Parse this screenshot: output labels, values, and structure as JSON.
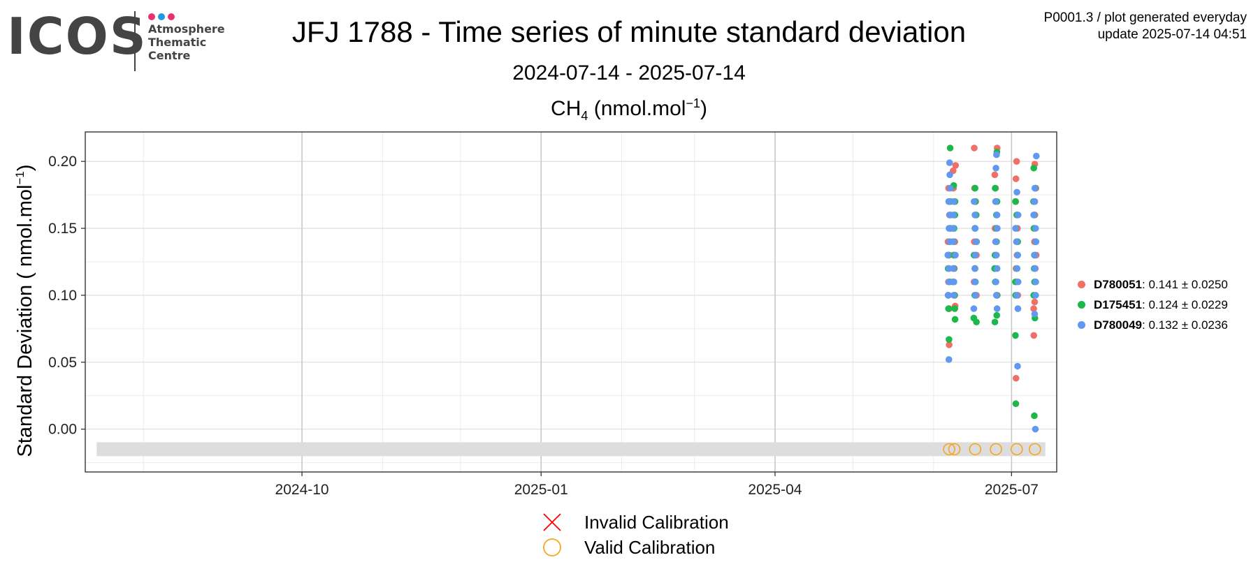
{
  "logo": {
    "word": "ICOS",
    "subtitle_lines": [
      "Atmosphere",
      "Thematic",
      "Centre"
    ],
    "dot_colors": [
      "#e6336e",
      "#1e9be0",
      "#e6336e"
    ]
  },
  "header": {
    "title": "JFJ 1788 - Time series of minute standard deviation",
    "date_range": "2024-07-14 - 2025-07-14",
    "gas_base": "CH",
    "gas_sub": "4",
    "gas_unit_pre": " (nmol.mol",
    "gas_unit_sup": "−1",
    "gas_unit_post": ")",
    "meta_line1": "P0001.3 / plot generated everyday",
    "meta_line2": "update  2025-07-14 04:51"
  },
  "chart_data": {
    "type": "scatter",
    "ylabel_pre": "Standard Deviation ( nmol.mol",
    "ylabel_sup": "−1",
    "ylabel_post": ")",
    "x_range": [
      "2024-07-14",
      "2025-07-14"
    ],
    "ylim": [
      -0.032,
      0.222
    ],
    "y_ticks": [
      0.0,
      0.05,
      0.1,
      0.15,
      0.2
    ],
    "y_tick_labels": [
      "0.00",
      "0.05",
      "0.10",
      "0.15",
      "0.20"
    ],
    "x_ticks": [
      "2024-10-01",
      "2025-01-01",
      "2025-04-01",
      "2025-07-01"
    ],
    "x_tick_labels": [
      "2024-10",
      "2025-01",
      "2025-04",
      "2025-07"
    ],
    "x_minor_ticks": [
      "2024-08-01",
      "2024-11-01",
      "2024-12-01",
      "2025-02-01",
      "2025-03-01",
      "2025-05-01",
      "2025-06-01"
    ],
    "grid": true,
    "legend_position": "right",
    "calibration_band": {
      "y_center": -0.015,
      "from": "2024-07-14",
      "to": "2025-07-14",
      "color": "#dddddd"
    },
    "calibration_points": {
      "status": "valid",
      "dates": [
        "2025-06-07",
        "2025-06-09",
        "2025-06-17",
        "2025-06-25",
        "2025-07-03",
        "2025-07-10"
      ],
      "y": -0.015
    },
    "series": [
      {
        "name": "D780051",
        "stats": ": 0.141 ± 0.0250",
        "color": "#f07068",
        "points": [
          [
            "2025-06-07",
            0.063
          ],
          [
            "2025-06-07",
            0.09
          ],
          [
            "2025-06-07",
            0.1
          ],
          [
            "2025-06-07",
            0.11
          ],
          [
            "2025-06-07",
            0.12
          ],
          [
            "2025-06-07",
            0.13
          ],
          [
            "2025-06-07",
            0.14
          ],
          [
            "2025-06-07",
            0.15
          ],
          [
            "2025-06-07",
            0.16
          ],
          [
            "2025-06-07",
            0.17
          ],
          [
            "2025-06-07",
            0.18
          ],
          [
            "2025-06-09",
            0.092
          ],
          [
            "2025-06-09",
            0.1
          ],
          [
            "2025-06-09",
            0.11
          ],
          [
            "2025-06-09",
            0.12
          ],
          [
            "2025-06-09",
            0.13
          ],
          [
            "2025-06-09",
            0.14
          ],
          [
            "2025-06-09",
            0.15
          ],
          [
            "2025-06-09",
            0.16
          ],
          [
            "2025-06-09",
            0.17
          ],
          [
            "2025-06-09",
            0.18
          ],
          [
            "2025-06-09",
            0.193
          ],
          [
            "2025-06-09",
            0.197
          ],
          [
            "2025-06-17",
            0.1
          ],
          [
            "2025-06-17",
            0.11
          ],
          [
            "2025-06-17",
            0.12
          ],
          [
            "2025-06-17",
            0.13
          ],
          [
            "2025-06-17",
            0.14
          ],
          [
            "2025-06-17",
            0.15
          ],
          [
            "2025-06-17",
            0.16
          ],
          [
            "2025-06-17",
            0.17
          ],
          [
            "2025-06-17",
            0.18
          ],
          [
            "2025-06-17",
            0.21
          ],
          [
            "2025-06-25",
            0.1
          ],
          [
            "2025-06-25",
            0.11
          ],
          [
            "2025-06-25",
            0.12
          ],
          [
            "2025-06-25",
            0.13
          ],
          [
            "2025-06-25",
            0.14
          ],
          [
            "2025-06-25",
            0.15
          ],
          [
            "2025-06-25",
            0.16
          ],
          [
            "2025-06-25",
            0.17
          ],
          [
            "2025-06-25",
            0.18
          ],
          [
            "2025-06-25",
            0.19
          ],
          [
            "2025-06-25",
            0.21
          ],
          [
            "2025-07-03",
            0.038
          ],
          [
            "2025-07-03",
            0.1
          ],
          [
            "2025-07-03",
            0.11
          ],
          [
            "2025-07-03",
            0.12
          ],
          [
            "2025-07-03",
            0.13
          ],
          [
            "2025-07-03",
            0.14
          ],
          [
            "2025-07-03",
            0.15
          ],
          [
            "2025-07-03",
            0.16
          ],
          [
            "2025-07-03",
            0.17
          ],
          [
            "2025-07-03",
            0.187
          ],
          [
            "2025-07-03",
            0.2
          ],
          [
            "2025-07-10",
            0.07
          ],
          [
            "2025-07-10",
            0.09
          ],
          [
            "2025-07-10",
            0.095
          ],
          [
            "2025-07-10",
            0.11
          ],
          [
            "2025-07-10",
            0.12
          ],
          [
            "2025-07-10",
            0.13
          ],
          [
            "2025-07-10",
            0.14
          ],
          [
            "2025-07-10",
            0.15
          ],
          [
            "2025-07-10",
            0.16
          ],
          [
            "2025-07-10",
            0.17
          ],
          [
            "2025-07-10",
            0.18
          ],
          [
            "2025-07-10",
            0.198
          ]
        ]
      },
      {
        "name": "D175451",
        "stats": ": 0.124 ± 0.0229",
        "color": "#1cb84a",
        "points": [
          [
            "2025-06-07",
            0.067
          ],
          [
            "2025-06-07",
            0.09
          ],
          [
            "2025-06-07",
            0.1
          ],
          [
            "2025-06-07",
            0.11
          ],
          [
            "2025-06-07",
            0.12
          ],
          [
            "2025-06-07",
            0.13
          ],
          [
            "2025-06-07",
            0.14
          ],
          [
            "2025-06-07",
            0.15
          ],
          [
            "2025-06-07",
            0.16
          ],
          [
            "2025-06-07",
            0.17
          ],
          [
            "2025-06-07",
            0.21
          ],
          [
            "2025-06-09",
            0.082
          ],
          [
            "2025-06-09",
            0.09
          ],
          [
            "2025-06-09",
            0.1
          ],
          [
            "2025-06-09",
            0.11
          ],
          [
            "2025-06-09",
            0.12
          ],
          [
            "2025-06-09",
            0.13
          ],
          [
            "2025-06-09",
            0.14
          ],
          [
            "2025-06-09",
            0.15
          ],
          [
            "2025-06-09",
            0.16
          ],
          [
            "2025-06-09",
            0.17
          ],
          [
            "2025-06-09",
            0.182
          ],
          [
            "2025-06-17",
            0.08
          ],
          [
            "2025-06-17",
            0.083
          ],
          [
            "2025-06-17",
            0.1
          ],
          [
            "2025-06-17",
            0.11
          ],
          [
            "2025-06-17",
            0.12
          ],
          [
            "2025-06-17",
            0.13
          ],
          [
            "2025-06-17",
            0.14
          ],
          [
            "2025-06-17",
            0.15
          ],
          [
            "2025-06-17",
            0.16
          ],
          [
            "2025-06-17",
            0.17
          ],
          [
            "2025-06-17",
            0.18
          ],
          [
            "2025-06-25",
            0.08
          ],
          [
            "2025-06-25",
            0.085
          ],
          [
            "2025-06-25",
            0.1
          ],
          [
            "2025-06-25",
            0.11
          ],
          [
            "2025-06-25",
            0.12
          ],
          [
            "2025-06-25",
            0.13
          ],
          [
            "2025-06-25",
            0.14
          ],
          [
            "2025-06-25",
            0.15
          ],
          [
            "2025-06-25",
            0.16
          ],
          [
            "2025-06-25",
            0.17
          ],
          [
            "2025-06-25",
            0.18
          ],
          [
            "2025-06-25",
            0.207
          ],
          [
            "2025-07-03",
            0.019
          ],
          [
            "2025-07-03",
            0.07
          ],
          [
            "2025-07-03",
            0.1
          ],
          [
            "2025-07-03",
            0.11
          ],
          [
            "2025-07-03",
            0.12
          ],
          [
            "2025-07-03",
            0.13
          ],
          [
            "2025-07-03",
            0.14
          ],
          [
            "2025-07-03",
            0.15
          ],
          [
            "2025-07-03",
            0.16
          ],
          [
            "2025-07-03",
            0.17
          ],
          [
            "2025-07-10",
            0.01
          ],
          [
            "2025-07-10",
            0.083
          ],
          [
            "2025-07-10",
            0.1
          ],
          [
            "2025-07-10",
            0.11
          ],
          [
            "2025-07-10",
            0.12
          ],
          [
            "2025-07-10",
            0.13
          ],
          [
            "2025-07-10",
            0.14
          ],
          [
            "2025-07-10",
            0.15
          ],
          [
            "2025-07-10",
            0.16
          ],
          [
            "2025-07-10",
            0.17
          ],
          [
            "2025-07-10",
            0.18
          ],
          [
            "2025-07-10",
            0.195
          ]
        ]
      },
      {
        "name": "D780049",
        "stats": ": 0.132 ± 0.0236",
        "color": "#6199f0",
        "points": [
          [
            "2025-06-07",
            0.052
          ],
          [
            "2025-06-07",
            0.1
          ],
          [
            "2025-06-07",
            0.11
          ],
          [
            "2025-06-07",
            0.12
          ],
          [
            "2025-06-07",
            0.13
          ],
          [
            "2025-06-07",
            0.14
          ],
          [
            "2025-06-07",
            0.15
          ],
          [
            "2025-06-07",
            0.16
          ],
          [
            "2025-06-07",
            0.17
          ],
          [
            "2025-06-07",
            0.18
          ],
          [
            "2025-06-07",
            0.19
          ],
          [
            "2025-06-07",
            0.199
          ],
          [
            "2025-06-09",
            0.1
          ],
          [
            "2025-06-09",
            0.11
          ],
          [
            "2025-06-09",
            0.12
          ],
          [
            "2025-06-09",
            0.13
          ],
          [
            "2025-06-09",
            0.14
          ],
          [
            "2025-06-09",
            0.15
          ],
          [
            "2025-06-09",
            0.16
          ],
          [
            "2025-06-09",
            0.17
          ],
          [
            "2025-06-17",
            0.09
          ],
          [
            "2025-06-17",
            0.1
          ],
          [
            "2025-06-17",
            0.11
          ],
          [
            "2025-06-17",
            0.12
          ],
          [
            "2025-06-17",
            0.13
          ],
          [
            "2025-06-17",
            0.14
          ],
          [
            "2025-06-17",
            0.15
          ],
          [
            "2025-06-17",
            0.16
          ],
          [
            "2025-06-17",
            0.17
          ],
          [
            "2025-06-25",
            0.09
          ],
          [
            "2025-06-25",
            0.1
          ],
          [
            "2025-06-25",
            0.11
          ],
          [
            "2025-06-25",
            0.12
          ],
          [
            "2025-06-25",
            0.13
          ],
          [
            "2025-06-25",
            0.14
          ],
          [
            "2025-06-25",
            0.15
          ],
          [
            "2025-06-25",
            0.16
          ],
          [
            "2025-06-25",
            0.17
          ],
          [
            "2025-06-25",
            0.195
          ],
          [
            "2025-06-25",
            0.205
          ],
          [
            "2025-07-03",
            0.047
          ],
          [
            "2025-07-03",
            0.09
          ],
          [
            "2025-07-03",
            0.1
          ],
          [
            "2025-07-03",
            0.11
          ],
          [
            "2025-07-03",
            0.12
          ],
          [
            "2025-07-03",
            0.13
          ],
          [
            "2025-07-03",
            0.14
          ],
          [
            "2025-07-03",
            0.15
          ],
          [
            "2025-07-03",
            0.16
          ],
          [
            "2025-07-03",
            0.177
          ],
          [
            "2025-07-10",
            0.0
          ],
          [
            "2025-07-10",
            0.086
          ],
          [
            "2025-07-10",
            0.1
          ],
          [
            "2025-07-10",
            0.11
          ],
          [
            "2025-07-10",
            0.12
          ],
          [
            "2025-07-10",
            0.13
          ],
          [
            "2025-07-10",
            0.14
          ],
          [
            "2025-07-10",
            0.15
          ],
          [
            "2025-07-10",
            0.16
          ],
          [
            "2025-07-10",
            0.17
          ],
          [
            "2025-07-10",
            0.18
          ],
          [
            "2025-07-10",
            0.204
          ]
        ]
      }
    ],
    "calibration_legend": [
      {
        "label": "Invalid Calibration",
        "symbol": "cross",
        "color": "#ff0000"
      },
      {
        "label": "Valid Calibration",
        "symbol": "circle",
        "color": "#f5a623"
      }
    ]
  }
}
